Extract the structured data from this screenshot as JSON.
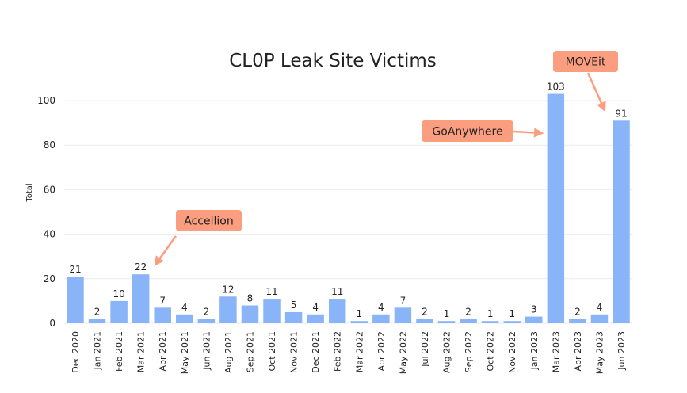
{
  "chart_data": {
    "type": "bar",
    "title": "CL0P Leak Site Victims",
    "y_label": "Total",
    "categories": [
      "Dec 2020",
      "Jan 2021",
      "Feb 2021",
      "Mar 2021",
      "Apr 2021",
      "May 2021",
      "Jun 2021",
      "Aug 2021",
      "Sep 2021",
      "Oct 2021",
      "Nov 2021",
      "Dec 2021",
      "Feb 2022",
      "Mar 2022",
      "Apr 2022",
      "May 2022",
      "Jul 2022",
      "Aug 2022",
      "Sep 2022",
      "Oct 2022",
      "Nov 2022",
      "Jan 2023",
      "Mar 2023",
      "Apr 2023",
      "May 2023",
      "Jun 2023"
    ],
    "values": [
      21,
      2,
      10,
      22,
      7,
      4,
      2,
      12,
      8,
      11,
      5,
      4,
      11,
      1,
      4,
      7,
      2,
      1,
      2,
      1,
      1,
      3,
      103,
      2,
      4,
      91
    ],
    "color": "#8ab4f8",
    "ylim": [
      0,
      110
    ],
    "yticks": [
      0,
      20,
      40,
      60,
      80,
      100
    ],
    "grid": true,
    "annotations": [
      "Accellion",
      "GoAnywhere",
      "MOVEit"
    ],
    "annotation_color": "#fb9d7f"
  }
}
